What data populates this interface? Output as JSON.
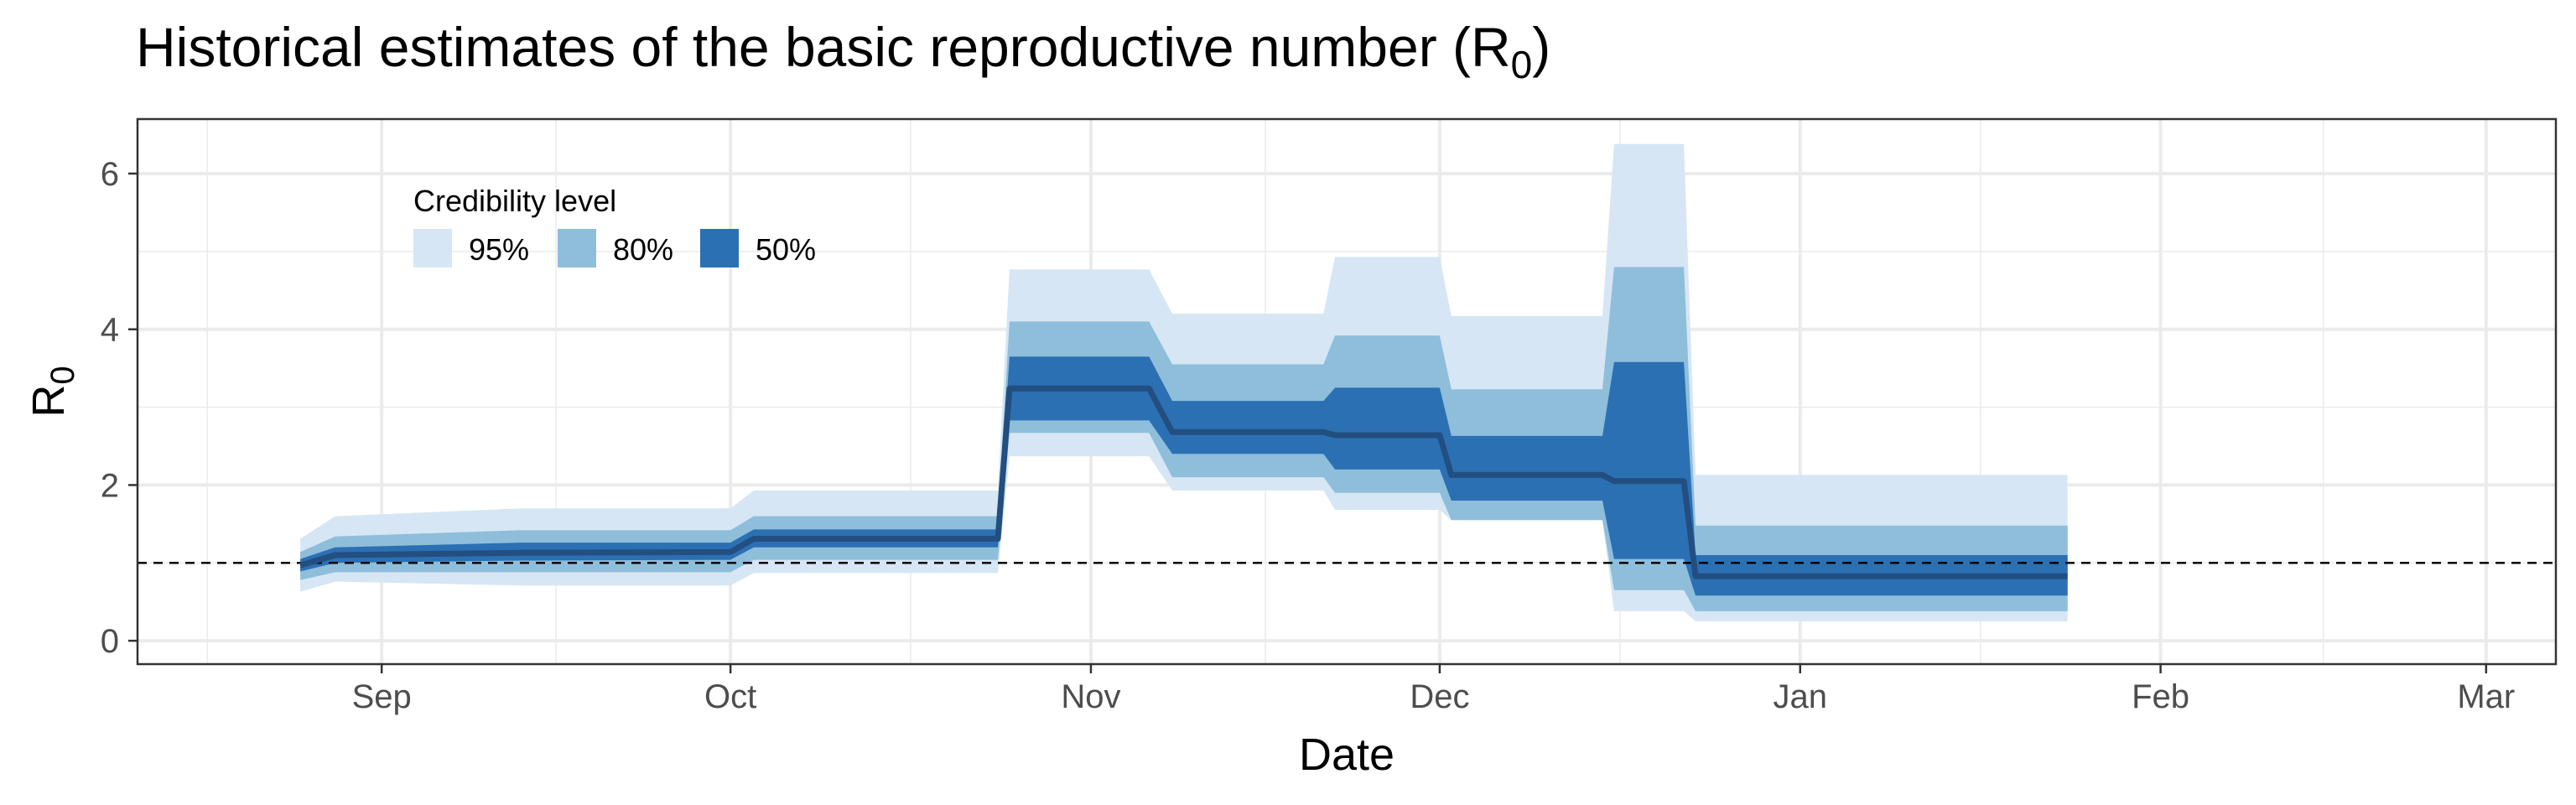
{
  "chart_data": {
    "type": "area",
    "title": "Historical estimates of the basic reproductive number (R",
    "title_subscript": "0",
    "title_suffix": ")",
    "xlabel": "Date",
    "ylabel": "R",
    "ylabel_subscript": "0",
    "x_ticks": [
      {
        "label": "Sep",
        "date": "2020-09-01"
      },
      {
        "label": "Oct",
        "date": "2020-10-01"
      },
      {
        "label": "Nov",
        "date": "2020-11-01"
      },
      {
        "label": "Dec",
        "date": "2020-12-01"
      },
      {
        "label": "Jan",
        "date": "2021-01-01"
      },
      {
        "label": "Feb",
        "date": "2021-02-01"
      },
      {
        "label": "Mar",
        "date": "2021-03-01"
      }
    ],
    "xlim": [
      "2020-08-11",
      "2021-03-07"
    ],
    "y_ticks": [
      0,
      2,
      4,
      6
    ],
    "ylim": [
      -0.3,
      6.7
    ],
    "grid": true,
    "reference_line": {
      "y": 1,
      "style": "dashed"
    },
    "legend": {
      "title": "Credibility level",
      "placement": "top-left",
      "items": [
        {
          "label": "95%",
          "color": "#d6e6f4"
        },
        {
          "label": "80%",
          "color": "#8fbedb"
        },
        {
          "label": "50%",
          "color": "#2b70b3"
        }
      ]
    },
    "line_color": "#234e80",
    "points": [
      {
        "date": "2020-08-25",
        "median": 0.97,
        "lo50": 0.89,
        "hi50": 1.05,
        "lo80": 0.78,
        "hi80": 1.14,
        "lo95": 0.63,
        "hi95": 1.31
      },
      {
        "date": "2020-08-28",
        "median": 1.1,
        "lo50": 1.0,
        "hi50": 1.2,
        "lo80": 0.88,
        "hi80": 1.34,
        "lo95": 0.76,
        "hi95": 1.6
      },
      {
        "date": "2020-09-13",
        "median": 1.13,
        "lo50": 1.03,
        "hi50": 1.26,
        "lo80": 0.88,
        "hi80": 1.42,
        "lo95": 0.71,
        "hi95": 1.7
      },
      {
        "date": "2020-10-01",
        "median": 1.14,
        "lo50": 1.04,
        "hi50": 1.26,
        "lo80": 0.88,
        "hi80": 1.42,
        "lo95": 0.71,
        "hi95": 1.7
      },
      {
        "date": "2020-10-03",
        "median": 1.31,
        "lo50": 1.2,
        "hi50": 1.43,
        "lo80": 1.04,
        "hi80": 1.6,
        "lo95": 0.87,
        "hi95": 1.93
      },
      {
        "date": "2020-10-24",
        "median": 1.31,
        "lo50": 1.2,
        "hi50": 1.43,
        "lo80": 1.04,
        "hi80": 1.6,
        "lo95": 0.87,
        "hi95": 1.93
      },
      {
        "date": "2020-10-25",
        "median": 3.24,
        "lo50": 2.83,
        "hi50": 3.65,
        "lo80": 2.67,
        "hi80": 4.1,
        "lo95": 2.37,
        "hi95": 4.77
      },
      {
        "date": "2020-11-06",
        "median": 3.24,
        "lo50": 2.83,
        "hi50": 3.65,
        "lo80": 2.67,
        "hi80": 4.1,
        "lo95": 2.37,
        "hi95": 4.77
      },
      {
        "date": "2020-11-08",
        "median": 2.68,
        "lo50": 2.4,
        "hi50": 3.08,
        "lo80": 2.1,
        "hi80": 3.55,
        "lo95": 1.93,
        "hi95": 4.2
      },
      {
        "date": "2020-11-21",
        "median": 2.68,
        "lo50": 2.4,
        "hi50": 3.08,
        "lo80": 2.1,
        "hi80": 3.55,
        "lo95": 1.93,
        "hi95": 4.2
      },
      {
        "date": "2020-11-22",
        "median": 2.64,
        "lo50": 2.2,
        "hi50": 3.25,
        "lo80": 1.9,
        "hi80": 3.92,
        "lo95": 1.68,
        "hi95": 4.93
      },
      {
        "date": "2020-12-01",
        "median": 2.64,
        "lo50": 2.2,
        "hi50": 3.25,
        "lo80": 1.9,
        "hi80": 3.92,
        "lo95": 1.68,
        "hi95": 4.93
      },
      {
        "date": "2020-12-02",
        "median": 2.13,
        "lo50": 1.8,
        "hi50": 2.63,
        "lo80": 1.55,
        "hi80": 3.23,
        "lo95": 1.55,
        "hi95": 4.17
      },
      {
        "date": "2020-12-15",
        "median": 2.13,
        "lo50": 1.8,
        "hi50": 2.63,
        "lo80": 1.55,
        "hi80": 3.23,
        "lo95": 1.55,
        "hi95": 4.17
      },
      {
        "date": "2020-12-16",
        "median": 2.05,
        "lo50": 1.05,
        "hi50": 3.58,
        "lo80": 0.65,
        "hi80": 4.8,
        "lo95": 0.38,
        "hi95": 6.38
      },
      {
        "date": "2020-12-22",
        "median": 2.05,
        "lo50": 1.05,
        "hi50": 3.58,
        "lo80": 0.65,
        "hi80": 4.8,
        "lo95": 0.38,
        "hi95": 6.38
      },
      {
        "date": "2020-12-23",
        "median": 0.83,
        "lo50": 0.58,
        "hi50": 1.1,
        "lo80": 0.38,
        "hi80": 1.48,
        "lo95": 0.25,
        "hi95": 2.13
      },
      {
        "date": "2021-01-24",
        "median": 0.83,
        "lo50": 0.58,
        "hi50": 1.1,
        "lo80": 0.38,
        "hi80": 1.48,
        "lo95": 0.25,
        "hi95": 2.13
      }
    ]
  }
}
